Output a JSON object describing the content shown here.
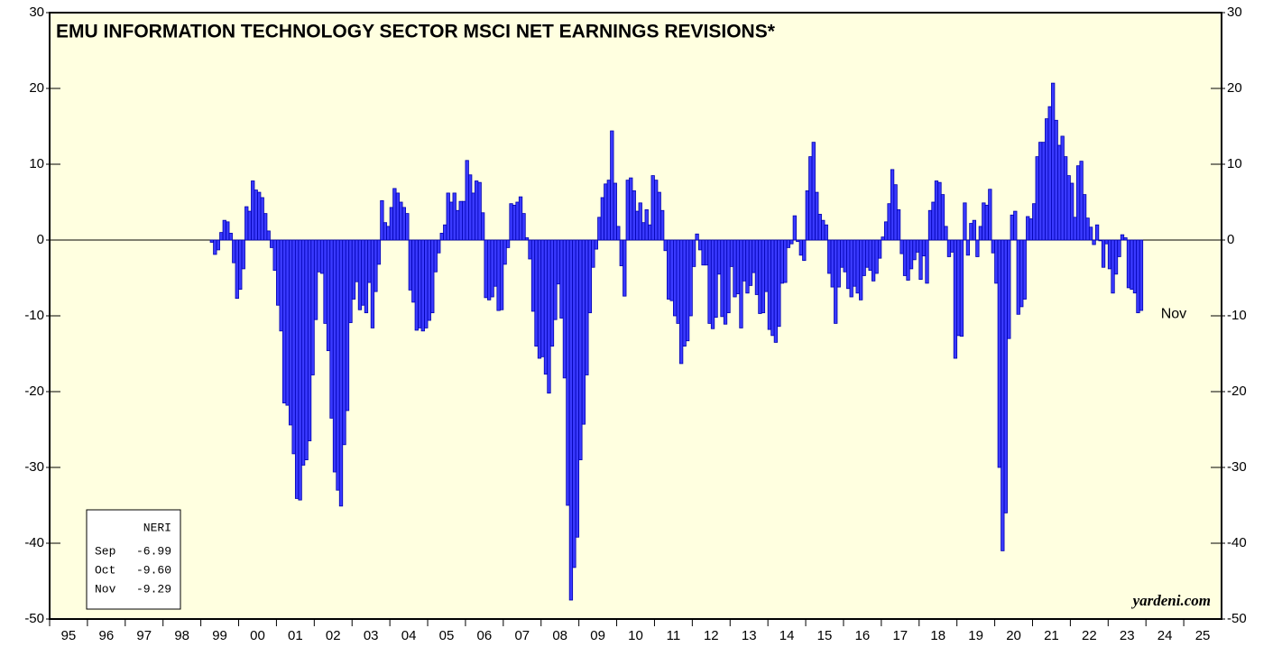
{
  "chart_data": {
    "type": "bar",
    "title": "EMU INFORMATION TECHNOLOGY SECTOR MSCI NET EARNINGS REVISIONS*",
    "color": "#3a3aff",
    "x": [
      "1999-04",
      "1999-05",
      "1999-06",
      "1999-07",
      "1999-08",
      "1999-09",
      "1999-10",
      "1999-11",
      "1999-12",
      "2000-01",
      "2000-02",
      "2000-03",
      "2000-04",
      "2000-05",
      "2000-06",
      "2000-07",
      "2000-08",
      "2000-09",
      "2000-10",
      "2000-11",
      "2000-12",
      "2001-01",
      "2001-02",
      "2001-03",
      "2001-04",
      "2001-05",
      "2001-06",
      "2001-07",
      "2001-08",
      "2001-09",
      "2001-10",
      "2001-11",
      "2001-12",
      "2002-01",
      "2002-02",
      "2002-03",
      "2002-04",
      "2002-05",
      "2002-06",
      "2002-07",
      "2002-08",
      "2002-09",
      "2002-10",
      "2002-11",
      "2002-12",
      "2003-01",
      "2003-02",
      "2003-03",
      "2003-04",
      "2003-05",
      "2003-06",
      "2003-07",
      "2003-08",
      "2003-09",
      "2003-10",
      "2003-11",
      "2003-12",
      "2004-01",
      "2004-02",
      "2004-03",
      "2004-04",
      "2004-05",
      "2004-06",
      "2004-07",
      "2004-08",
      "2004-09",
      "2004-10",
      "2004-11",
      "2004-12",
      "2005-01",
      "2005-02",
      "2005-03",
      "2005-04",
      "2005-05",
      "2005-06",
      "2005-07",
      "2005-08",
      "2005-09",
      "2005-10",
      "2005-11",
      "2005-12",
      "2006-01",
      "2006-02",
      "2006-03",
      "2006-04",
      "2006-05",
      "2006-06",
      "2006-07",
      "2006-08",
      "2006-09",
      "2006-10",
      "2006-11",
      "2006-12",
      "2007-01",
      "2007-02",
      "2007-03",
      "2007-04",
      "2007-05",
      "2007-06",
      "2007-07",
      "2007-08",
      "2007-09",
      "2007-10",
      "2007-11",
      "2007-12",
      "2008-01",
      "2008-02",
      "2008-03",
      "2008-04",
      "2008-05",
      "2008-06",
      "2008-07",
      "2008-08",
      "2008-09",
      "2008-10",
      "2008-11",
      "2008-12",
      "2009-01",
      "2009-02",
      "2009-03",
      "2009-04",
      "2009-05",
      "2009-06",
      "2009-07",
      "2009-08",
      "2009-09",
      "2009-10",
      "2009-11",
      "2009-12",
      "2010-01",
      "2010-02",
      "2010-03",
      "2010-04",
      "2010-05",
      "2010-06",
      "2010-07",
      "2010-08",
      "2010-09",
      "2010-10",
      "2010-11",
      "2010-12",
      "2011-01",
      "2011-02",
      "2011-03",
      "2011-04",
      "2011-05",
      "2011-06",
      "2011-07",
      "2011-08",
      "2011-09",
      "2011-10",
      "2011-11",
      "2011-12",
      "2012-01",
      "2012-02",
      "2012-03",
      "2012-04",
      "2012-05",
      "2012-06",
      "2012-07",
      "2012-08",
      "2012-09",
      "2012-10",
      "2012-11",
      "2012-12",
      "2013-01",
      "2013-02",
      "2013-03",
      "2013-04",
      "2013-05",
      "2013-06",
      "2013-07",
      "2013-08",
      "2013-09",
      "2013-10",
      "2013-11",
      "2013-12",
      "2014-01",
      "2014-02",
      "2014-03",
      "2014-04",
      "2014-05",
      "2014-06",
      "2014-07",
      "2014-08",
      "2014-09",
      "2014-10",
      "2014-11",
      "2014-12",
      "2015-01",
      "2015-02",
      "2015-03",
      "2015-04",
      "2015-05",
      "2015-06",
      "2015-07",
      "2015-08",
      "2015-09",
      "2015-10",
      "2015-11",
      "2015-12",
      "2016-01",
      "2016-02",
      "2016-03",
      "2016-04",
      "2016-05",
      "2016-06",
      "2016-07",
      "2016-08",
      "2016-09",
      "2016-10",
      "2016-11",
      "2016-12",
      "2017-01",
      "2017-02",
      "2017-03",
      "2017-04",
      "2017-05",
      "2017-06",
      "2017-07",
      "2017-08",
      "2017-09",
      "2017-10",
      "2017-11",
      "2017-12",
      "2018-01",
      "2018-02",
      "2018-03",
      "2018-04",
      "2018-05",
      "2018-06",
      "2018-07",
      "2018-08",
      "2018-09",
      "2018-10",
      "2018-11",
      "2018-12",
      "2019-01",
      "2019-02",
      "2019-03",
      "2019-04",
      "2019-05",
      "2019-06",
      "2019-07",
      "2019-08",
      "2019-09",
      "2019-10",
      "2019-11",
      "2019-12",
      "2020-01",
      "2020-02",
      "2020-03",
      "2020-04",
      "2020-05",
      "2020-06",
      "2020-07",
      "2020-08",
      "2020-09",
      "2020-10",
      "2020-11",
      "2020-12",
      "2021-01",
      "2021-02",
      "2021-03",
      "2021-04",
      "2021-05",
      "2021-06",
      "2021-07",
      "2021-08",
      "2021-09",
      "2021-10",
      "2021-11",
      "2021-12",
      "2022-01",
      "2022-02",
      "2022-03",
      "2022-04",
      "2022-05",
      "2022-06",
      "2022-07",
      "2022-08",
      "2022-09",
      "2022-10",
      "2022-11",
      "2022-12",
      "2023-01",
      "2023-02",
      "2023-03",
      "2023-04",
      "2023-05",
      "2023-06",
      "2023-07",
      "2023-08",
      "2023-09",
      "2023-10",
      "2023-11"
    ],
    "values": [
      -0.3,
      -1.9,
      -1.3,
      1,
      2.6,
      2.4,
      0.9,
      -3,
      -7.7,
      -6.5,
      -3.8,
      4.4,
      3.8,
      7.8,
      6.6,
      6.3,
      5.6,
      3.5,
      1.2,
      -1,
      -4,
      -8.6,
      -12,
      -21.5,
      -21.8,
      -24.4,
      -28.2,
      -34.1,
      -34.3,
      -29.7,
      -29,
      -26.5,
      -17.8,
      -10.5,
      -4.2,
      -4.4,
      -11,
      -14.6,
      -23.5,
      -30.6,
      -33,
      -35.1,
      -27,
      -22.5,
      -10.9,
      -7.8,
      -5.5,
      -9.2,
      -8.6,
      -9.6,
      -5.6,
      -11.6,
      -6.8,
      -3.2,
      5.2,
      2.3,
      1.8,
      4.3,
      6.8,
      6.2,
      5,
      4.3,
      3.5,
      -6.6,
      -8.2,
      -11.9,
      -11.6,
      -12,
      -11.6,
      -10.6,
      -9.6,
      -4.2,
      -1.7,
      0.9,
      2,
      6.2,
      5,
      6.2,
      3.9,
      5.1,
      5.1,
      10.5,
      8.6,
      6.2,
      7.8,
      7.6,
      3.6,
      -7.6,
      -7.9,
      -7.5,
      -6.1,
      -9.3,
      -9.2,
      -3.2,
      -1,
      4.8,
      4.6,
      5,
      5.7,
      3.5,
      0.3,
      -2.5,
      -9.4,
      -14,
      -15.6,
      -15.4,
      -17.7,
      -20.2,
      -14,
      -10.5,
      -5.8,
      -10.3,
      -18.2,
      -35,
      -47.5,
      -43.2,
      -39.2,
      -29,
      -24.3,
      -17.8,
      -9.6,
      -3.6,
      -1.2,
      3,
      5.6,
      7.4,
      7.9,
      14.4,
      7.5,
      1.8,
      -3.4,
      -7.4,
      7.9,
      8.2,
      6.5,
      3.8,
      4.9,
      2.3,
      4,
      2,
      8.5,
      7.9,
      6.3,
      3.9,
      -1.4,
      -7.8,
      -8,
      -10,
      -11,
      -16.3,
      -14,
      -13.3,
      -10,
      -3.5,
      0.8,
      -1.3,
      -3.3,
      -3.3,
      -11,
      -11.7,
      -10.2,
      -4.5,
      -10.1,
      -11.1,
      -9.6,
      -3.5,
      -7.5,
      -7.1,
      -11.6,
      -5.4,
      -7,
      -6,
      -4.3,
      -7.2,
      -9.7,
      -9.6,
      -6.8,
      -11.8,
      -12.6,
      -13.5,
      -11.4,
      -5.7,
      -5.6,
      -1,
      -0.5,
      3.2,
      -0.2,
      -2,
      -2.7,
      6.5,
      11,
      12.9,
      6.3,
      3.4,
      2.6,
      2,
      -4.4,
      -6.2,
      -11,
      -6.2,
      -3.6,
      -4.2,
      -6.4,
      -7.5,
      -6.1,
      -7,
      -7.9,
      -4.7,
      -3.6,
      -4,
      -5.4,
      -4.4,
      -2.4,
      0.4,
      2.4,
      4.8,
      9.3,
      7.3,
      4,
      -1.8,
      -4.7,
      -5.3,
      -3.8,
      -2.6,
      -1.6,
      -5.2,
      -2.1,
      -5.7,
      3.9,
      5,
      7.8,
      7.6,
      6,
      1.8,
      -2.2,
      -1.6,
      -15.6,
      -12.6,
      -12.7,
      4.9,
      -2,
      2.2,
      2.6,
      -2.2,
      1.8,
      4.9,
      4.6,
      6.7,
      -1.7,
      -5.7,
      -30,
      -41,
      -36,
      -13,
      3.3,
      3.8,
      -9.8,
      -8.8,
      -7.8,
      3.1,
      2.8,
      4.8,
      11,
      12.9,
      12.9,
      16,
      17.6,
      20.7,
      15.8,
      12.5,
      13.7,
      11,
      8.5,
      7.5,
      3,
      9.8,
      10.4,
      6,
      2.9,
      1.7,
      -0.6,
      2,
      -0.1,
      -3.6,
      -0.5,
      -3.8,
      -7,
      -4.5,
      -2.2,
      0.7,
      0.3,
      -6.3,
      -6.5,
      -6.99,
      -9.6,
      -9.29
    ],
    "xlim": [
      1995,
      2026
    ],
    "xticks": [
      {
        "value": 1995,
        "label": "95"
      },
      {
        "value": 1996,
        "label": "96"
      },
      {
        "value": 1997,
        "label": "97"
      },
      {
        "value": 1998,
        "label": "98"
      },
      {
        "value": 1999,
        "label": "99"
      },
      {
        "value": 2000,
        "label": "00"
      },
      {
        "value": 2001,
        "label": "01"
      },
      {
        "value": 2002,
        "label": "02"
      },
      {
        "value": 2003,
        "label": "03"
      },
      {
        "value": 2004,
        "label": "04"
      },
      {
        "value": 2005,
        "label": "05"
      },
      {
        "value": 2006,
        "label": "06"
      },
      {
        "value": 2007,
        "label": "07"
      },
      {
        "value": 2008,
        "label": "08"
      },
      {
        "value": 2009,
        "label": "09"
      },
      {
        "value": 2010,
        "label": "10"
      },
      {
        "value": 2011,
        "label": "11"
      },
      {
        "value": 2012,
        "label": "12"
      },
      {
        "value": 2013,
        "label": "13"
      },
      {
        "value": 2014,
        "label": "14"
      },
      {
        "value": 2015,
        "label": "15"
      },
      {
        "value": 2016,
        "label": "16"
      },
      {
        "value": 2017,
        "label": "17"
      },
      {
        "value": 2018,
        "label": "18"
      },
      {
        "value": 2019,
        "label": "19"
      },
      {
        "value": 2020,
        "label": "20"
      },
      {
        "value": 2021,
        "label": "21"
      },
      {
        "value": 2022,
        "label": "22"
      },
      {
        "value": 2023,
        "label": "23"
      },
      {
        "value": 2024,
        "label": "24"
      },
      {
        "value": 2025,
        "label": "25"
      }
    ],
    "ylim": [
      -50,
      30
    ],
    "yticks": [
      -50,
      -40,
      -30,
      -20,
      -10,
      0,
      10,
      20,
      30
    ],
    "legend_box": {
      "title": "NERI",
      "rows": [
        {
          "label": "Sep",
          "value": "-6.99"
        },
        {
          "label": "Oct",
          "value": "-9.60"
        },
        {
          "label": "Nov",
          "value": "-9.29"
        }
      ]
    },
    "annotation": "Nov",
    "source": "yardeni.com"
  }
}
